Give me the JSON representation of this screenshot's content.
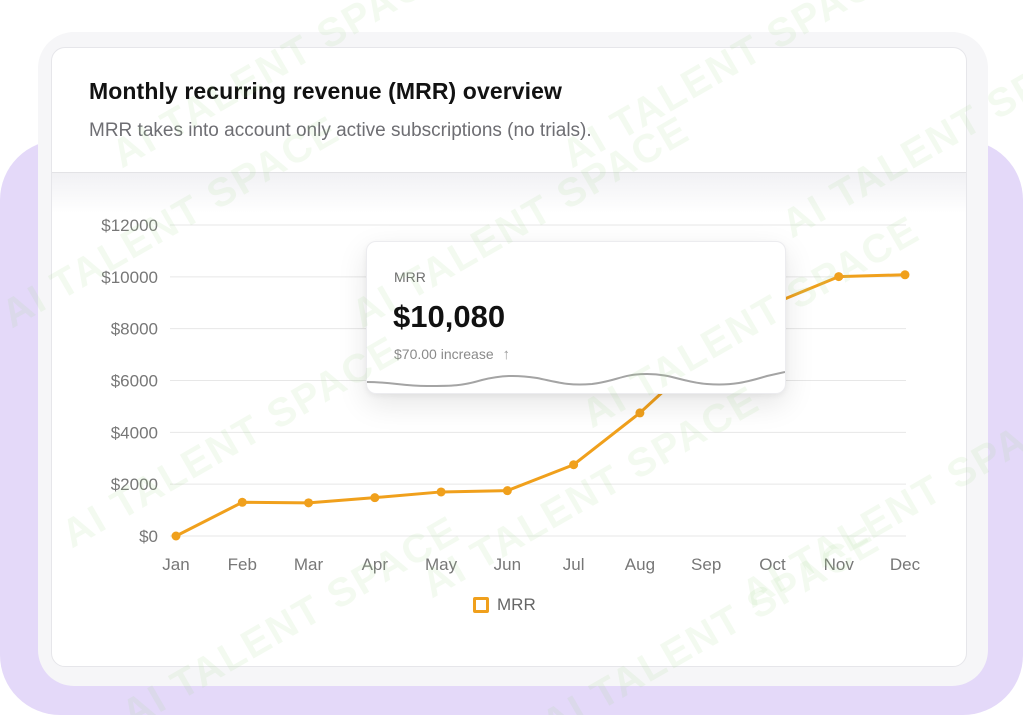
{
  "card": {
    "title": "Monthly recurring revenue (MRR) overview",
    "subtitle": "MRR takes into account only active subscriptions (no trials)."
  },
  "tooltip": {
    "label": "MRR",
    "value": "$10,080",
    "change": "$70.00 increase",
    "arrow": "↑",
    "arrow_icon": "arrow-up-icon"
  },
  "legend": {
    "label": "MRR"
  },
  "watermark": "AI TALENT SPACE",
  "colors": {
    "series": "#f0a01c",
    "sparkline": "#9a9a9a",
    "background_accent": "#e4d9f9"
  },
  "chart_data": {
    "type": "line",
    "title": "Monthly recurring revenue (MRR) overview",
    "xlabel": "",
    "ylabel": "",
    "categories": [
      "Jan",
      "Feb",
      "Mar",
      "Apr",
      "May",
      "Jun",
      "Jul",
      "Aug",
      "Sep",
      "Oct",
      "Nov",
      "Dec"
    ],
    "series": [
      {
        "name": "MRR",
        "values": [
          0,
          1300,
          1280,
          1480,
          1700,
          1750,
          2750,
          4750,
          7100,
          8950,
          10010,
          10080
        ]
      }
    ],
    "ylim": [
      0,
      12000
    ],
    "yticks": [
      0,
      2000,
      4000,
      6000,
      8000,
      10000,
      12000
    ],
    "ytick_labels": [
      "$0",
      "$2000",
      "$4000",
      "$6000",
      "$8000",
      "$10000",
      "$12000"
    ],
    "grid": true,
    "legend_position": "bottom-center"
  }
}
